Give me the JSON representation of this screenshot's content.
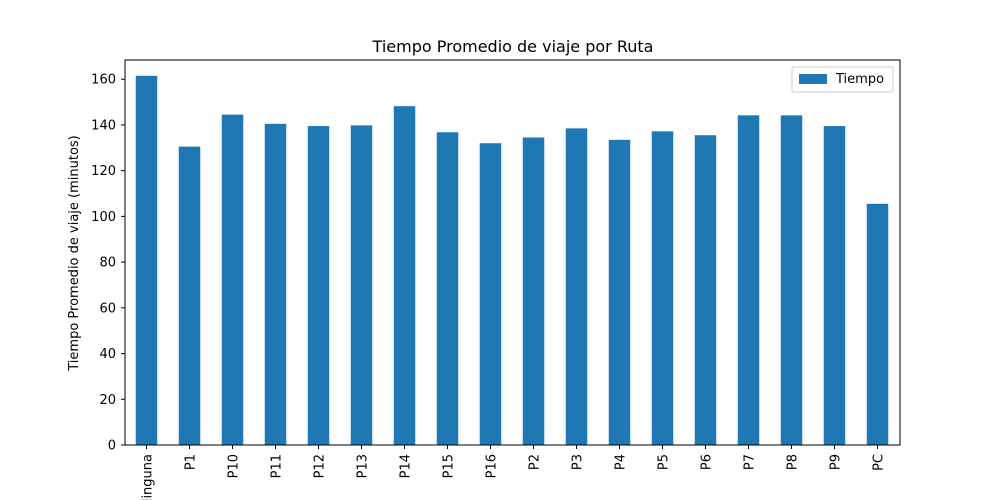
{
  "chart_data": {
    "type": "bar",
    "title": "Tiempo Promedio de viaje por Ruta",
    "xlabel": "",
    "ylabel": "Tiempo Promedio de viaje (minutos)",
    "categories": [
      "Ninguna",
      "P1",
      "P10",
      "P11",
      "P12",
      "P13",
      "P14",
      "P15",
      "P16",
      "P2",
      "P3",
      "P4",
      "P5",
      "P6",
      "P7",
      "P8",
      "P9",
      "PC"
    ],
    "series": [
      {
        "name": "Tiempo",
        "color": "#1f77b4",
        "values": [
          161.5,
          130.5,
          144.5,
          140.5,
          139.5,
          139.8,
          148.2,
          136.8,
          132.0,
          134.5,
          138.5,
          133.5,
          137.2,
          135.5,
          144.2,
          144.2,
          139.5,
          105.5
        ]
      }
    ],
    "ylim": [
      0,
      168.4
    ],
    "yticks": [
      0,
      20,
      40,
      60,
      80,
      100,
      120,
      140,
      160
    ],
    "grid": false,
    "legend": "top-right"
  }
}
